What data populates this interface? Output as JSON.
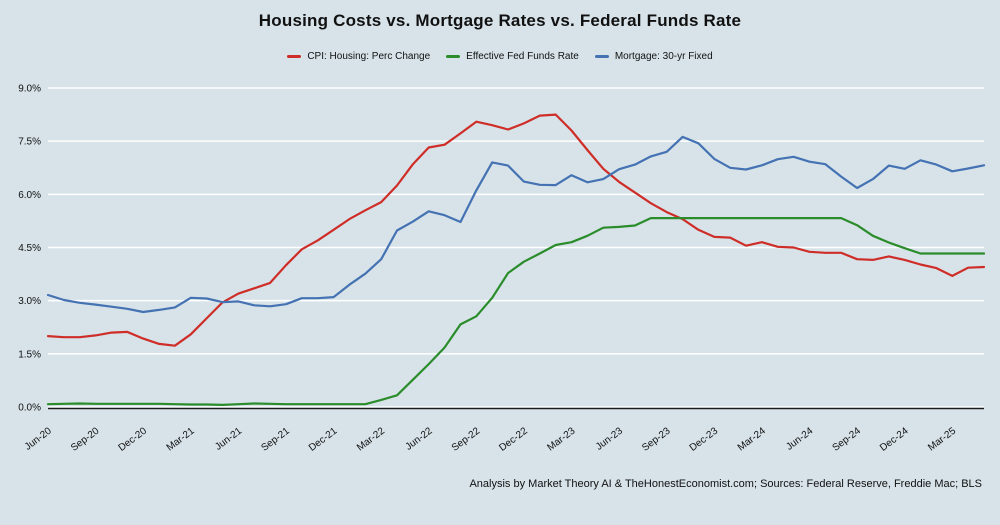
{
  "title": "Housing Costs vs. Mortgage Rates vs. Federal Funds Rate",
  "footer": "Analysis by Market Theory AI & TheHonestEconomist.com; Sources: Federal Reserve, Freddie Mac; BLS",
  "legend": {
    "items": [
      {
        "label": "CPI: Housing: Perc Change",
        "color": "#cf2d27"
      },
      {
        "label": "Effective Fed Funds Rate",
        "color": "#2a8c2a"
      },
      {
        "label": "Mortgage: 30-yr Fixed",
        "color": "#4472b2"
      }
    ]
  },
  "chart_data": {
    "type": "line",
    "title": "Housing Costs vs. Mortgage Rates vs. Federal Funds Rate",
    "xlabel": "",
    "ylabel": "",
    "ylim": [
      0,
      9
    ],
    "y_ticks": [
      0,
      1.5,
      3,
      4.5,
      6,
      7.5,
      9
    ],
    "y_tick_labels": [
      "0.0%",
      "1.5%",
      "3.0%",
      "4.5%",
      "6.0%",
      "7.5%",
      "9.0%"
    ],
    "x_tick_every": 3,
    "x_tick_labels": [
      "Jun-20",
      "Sep-20",
      "Dec-20",
      "Mar-21",
      "Jun-21",
      "Sep-21",
      "Dec-21",
      "Mar-22",
      "Jun-22",
      "Sep-22",
      "Dec-22",
      "Mar-23",
      "Jun-23",
      "Sep-23",
      "Dec-23",
      "Mar-24",
      "Jun-24",
      "Sep-24",
      "Dec-24",
      "Mar-25"
    ],
    "grid": true,
    "grid_color": "#ffffff",
    "plot_bg": "#d7e3e9",
    "axis_color": "#1a1a1a",
    "legend_position": "top-center",
    "x": [
      "Jun-20",
      "Jul-20",
      "Aug-20",
      "Sep-20",
      "Oct-20",
      "Nov-20",
      "Dec-20",
      "Jan-21",
      "Feb-21",
      "Mar-21",
      "Apr-21",
      "May-21",
      "Jun-21",
      "Jul-21",
      "Aug-21",
      "Sep-21",
      "Oct-21",
      "Nov-21",
      "Dec-21",
      "Jan-22",
      "Feb-22",
      "Mar-22",
      "Apr-22",
      "May-22",
      "Jun-22",
      "Jul-22",
      "Aug-22",
      "Sep-22",
      "Oct-22",
      "Nov-22",
      "Dec-22",
      "Jan-23",
      "Feb-23",
      "Mar-23",
      "Apr-23",
      "May-23",
      "Jun-23",
      "Jul-23",
      "Aug-23",
      "Sep-23",
      "Oct-23",
      "Nov-23",
      "Dec-23",
      "Jan-24",
      "Feb-24",
      "Mar-24",
      "Apr-24",
      "May-24",
      "Jun-24",
      "Jul-24",
      "Aug-24",
      "Sep-24",
      "Oct-24",
      "Nov-24",
      "Dec-24",
      "Jan-25",
      "Feb-25",
      "Mar-25",
      "Apr-25",
      "May-25"
    ],
    "series": [
      {
        "name": "CPI: Housing: Perc Change",
        "color": "#cf2d27",
        "values": [
          2.0,
          1.97,
          1.97,
          2.02,
          2.1,
          2.12,
          1.93,
          1.78,
          1.73,
          2.05,
          2.5,
          2.95,
          3.2,
          3.35,
          3.5,
          4.0,
          4.45,
          4.7,
          5.0,
          5.3,
          5.55,
          5.78,
          6.25,
          6.85,
          7.32,
          7.4,
          7.72,
          8.05,
          7.95,
          7.83,
          8.0,
          8.22,
          8.25,
          7.8,
          7.25,
          6.72,
          6.35,
          6.05,
          5.75,
          5.5,
          5.3,
          5.0,
          4.8,
          4.78,
          4.55,
          4.65,
          4.52,
          4.5,
          4.38,
          4.35,
          4.35,
          4.17,
          4.15,
          4.25,
          4.15,
          4.02,
          3.92,
          3.7,
          3.93,
          3.95
        ]
      },
      {
        "name": "Effective Fed Funds Rate",
        "color": "#2a8c2a",
        "values": [
          0.08,
          0.09,
          0.1,
          0.09,
          0.09,
          0.09,
          0.09,
          0.09,
          0.08,
          0.07,
          0.07,
          0.06,
          0.08,
          0.1,
          0.09,
          0.08,
          0.08,
          0.08,
          0.08,
          0.08,
          0.08,
          0.2,
          0.33,
          0.77,
          1.21,
          1.68,
          2.33,
          2.56,
          3.08,
          3.78,
          4.1,
          4.33,
          4.57,
          4.65,
          4.83,
          5.06,
          5.08,
          5.12,
          5.33,
          5.33,
          5.33,
          5.33,
          5.33,
          5.33,
          5.33,
          5.33,
          5.33,
          5.33,
          5.33,
          5.33,
          5.33,
          5.13,
          4.83,
          4.64,
          4.48,
          4.33,
          4.33,
          4.33,
          4.33,
          4.33
        ]
      },
      {
        "name": "Mortgage: 30-yr Fixed",
        "color": "#4472b2",
        "values": [
          3.16,
          3.02,
          2.94,
          2.89,
          2.83,
          2.77,
          2.68,
          2.74,
          2.81,
          3.08,
          3.06,
          2.96,
          2.98,
          2.87,
          2.84,
          2.9,
          3.07,
          3.07,
          3.1,
          3.45,
          3.76,
          4.17,
          4.98,
          5.23,
          5.52,
          5.41,
          5.22,
          6.11,
          6.9,
          6.81,
          6.36,
          6.27,
          6.26,
          6.54,
          6.34,
          6.43,
          6.71,
          6.84,
          7.07,
          7.2,
          7.62,
          7.44,
          7.0,
          6.75,
          6.7,
          6.82,
          6.99,
          7.06,
          6.92,
          6.85,
          6.5,
          6.18,
          6.43,
          6.81,
          6.72,
          6.96,
          6.84,
          6.65,
          6.73,
          6.82
        ]
      }
    ]
  }
}
